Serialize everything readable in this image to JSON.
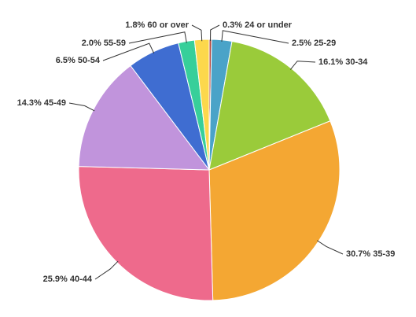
{
  "chart_data": {
    "type": "pie",
    "categories": [
      "24 or under",
      "25-29",
      "30-34",
      "35-39",
      "40-44",
      "45-49",
      "50-54",
      "55-59",
      "60 or over"
    ],
    "values": [
      0.3,
      2.5,
      16.1,
      30.7,
      25.9,
      14.3,
      6.5,
      2.0,
      1.8
    ],
    "value_labels": [
      "0.3%",
      "2.5%",
      "16.1%",
      "30.7%",
      "25.9%",
      "14.3%",
      "6.5%",
      "2.0%",
      "1.8%"
    ],
    "colors": [
      "#b5483f",
      "#4aa3c8",
      "#9acb3a",
      "#f4a733",
      "#ee6a8c",
      "#c194dc",
      "#3f6dd1",
      "#37cf9a",
      "#fcd84c"
    ]
  }
}
